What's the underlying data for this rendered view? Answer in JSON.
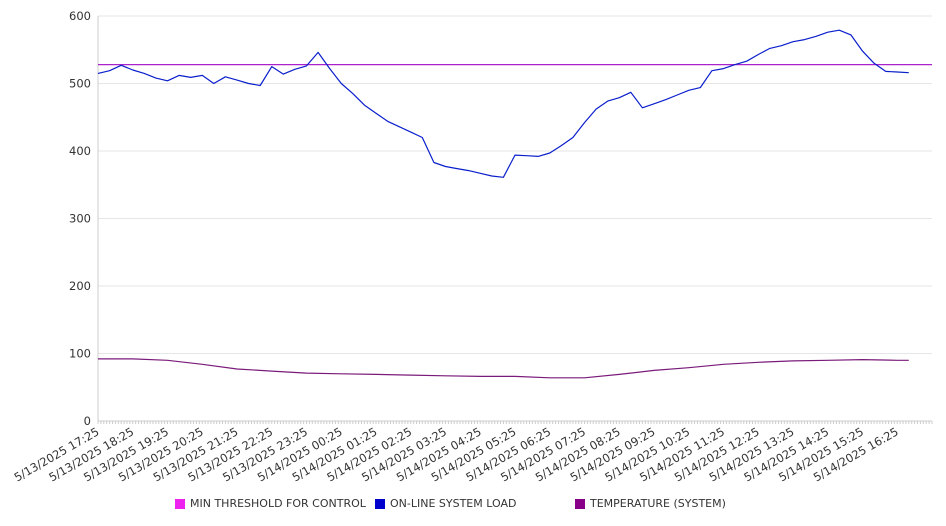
{
  "chart_data": {
    "type": "line",
    "title": "",
    "xlabel": "",
    "ylabel": "",
    "ylim": [
      0,
      600
    ],
    "y_ticks": [
      "0",
      "100",
      "200",
      "300",
      "400",
      "500",
      "600"
    ],
    "x_tick_labels": [
      "5/13/2025 17:25",
      "5/13/2025 18:25",
      "5/13/2025 19:25",
      "5/13/2025 20:25",
      "5/13/2025 21:25",
      "5/13/2025 22:25",
      "5/13/2025 23:25",
      "5/14/2025 00:25",
      "5/14/2025 01:25",
      "5/14/2025 02:25",
      "5/14/2025 03:25",
      "5/14/2025 04:25",
      "5/14/2025 05:25",
      "5/14/2025 06:25",
      "5/14/2025 07:25",
      "5/14/2025 08:25",
      "5/14/2025 09:25",
      "5/14/2025 10:25",
      "5/14/2025 11:25",
      "5/14/2025 12:25",
      "5/14/2025 13:25",
      "5/14/2025 14:25",
      "5/14/2025 15:25",
      "5/14/2025 16:25"
    ],
    "grid": true,
    "legend_position": "bottom",
    "series": [
      {
        "name": "MIN THRESHOLD FOR CONTROL",
        "color": "#ee22ee",
        "line_color": "#aa22cc",
        "constant": 528
      },
      {
        "name": "ON-LINE SYSTEM LOAD",
        "color": "#0000cc",
        "line_color": "#0a1fcc",
        "x": [
          "5/13/2025 17:25",
          "5/13/2025 17:45",
          "5/13/2025 18:05",
          "5/13/2025 18:25",
          "5/13/2025 18:45",
          "5/13/2025 19:05",
          "5/13/2025 19:25",
          "5/13/2025 19:45",
          "5/13/2025 20:05",
          "5/13/2025 20:25",
          "5/13/2025 20:45",
          "5/13/2025 21:05",
          "5/13/2025 21:25",
          "5/13/2025 21:45",
          "5/13/2025 22:05",
          "5/13/2025 22:25",
          "5/13/2025 22:45",
          "5/13/2025 23:05",
          "5/13/2025 23:25",
          "5/13/2025 23:45",
          "5/14/2025 00:05",
          "5/14/2025 00:25",
          "5/14/2025 00:45",
          "5/14/2025 01:05",
          "5/14/2025 01:25",
          "5/14/2025 01:45",
          "5/14/2025 02:05",
          "5/14/2025 02:25",
          "5/14/2025 02:45",
          "5/14/2025 03:05",
          "5/14/2025 03:25",
          "5/14/2025 03:45",
          "5/14/2025 04:05",
          "5/14/2025 04:25",
          "5/14/2025 04:45",
          "5/14/2025 05:05",
          "5/14/2025 05:25",
          "5/14/2025 05:45",
          "5/14/2025 06:05",
          "5/14/2025 06:25",
          "5/14/2025 06:45",
          "5/14/2025 07:05",
          "5/14/2025 07:25",
          "5/14/2025 07:45",
          "5/14/2025 08:05",
          "5/14/2025 08:25",
          "5/14/2025 08:45",
          "5/14/2025 09:05",
          "5/14/2025 09:25",
          "5/14/2025 09:45",
          "5/14/2025 10:05",
          "5/14/2025 10:25",
          "5/14/2025 10:45",
          "5/14/2025 11:05",
          "5/14/2025 11:25",
          "5/14/2025 11:45",
          "5/14/2025 12:05",
          "5/14/2025 12:25",
          "5/14/2025 12:45",
          "5/14/2025 13:05",
          "5/14/2025 13:25",
          "5/14/2025 13:45",
          "5/14/2025 14:05",
          "5/14/2025 14:25",
          "5/14/2025 14:45",
          "5/14/2025 15:05",
          "5/14/2025 15:25",
          "5/14/2025 15:45",
          "5/14/2025 16:05",
          "5/14/2025 16:25",
          "5/14/2025 16:45"
        ],
        "values": [
          515,
          519,
          527,
          520,
          515,
          508,
          504,
          512,
          509,
          512,
          500,
          510,
          505,
          500,
          497,
          525,
          514,
          521,
          526,
          546,
          522,
          500,
          485,
          468,
          456,
          444,
          436,
          428,
          420,
          383,
          377,
          374,
          371,
          367,
          363,
          361,
          394,
          393,
          392,
          397,
          408,
          420,
          442,
          462,
          474,
          479,
          487,
          464,
          470,
          476,
          483,
          490,
          494,
          519,
          522,
          528,
          533,
          543,
          552,
          556,
          562,
          565,
          570,
          576,
          579,
          572,
          548,
          530,
          518,
          517,
          516
        ]
      },
      {
        "name": "TEMPERATURE (SYSTEM)",
        "color": "#880088",
        "line_color": "#7a1a7a",
        "x": [
          "5/13/2025 17:25",
          "5/13/2025 18:25",
          "5/13/2025 19:25",
          "5/13/2025 20:25",
          "5/13/2025 21:25",
          "5/13/2025 22:25",
          "5/13/2025 23:25",
          "5/14/2025 00:25",
          "5/14/2025 01:25",
          "5/14/2025 02:25",
          "5/14/2025 03:25",
          "5/14/2025 04:25",
          "5/14/2025 05:25",
          "5/14/2025 06:25",
          "5/14/2025 07:25",
          "5/14/2025 08:25",
          "5/14/2025 09:25",
          "5/14/2025 10:25",
          "5/14/2025 11:25",
          "5/14/2025 12:25",
          "5/14/2025 13:25",
          "5/14/2025 14:25",
          "5/14/2025 15:25",
          "5/14/2025 16:25",
          "5/14/2025 16:45"
        ],
        "values": [
          92,
          92,
          90,
          84,
          77,
          74,
          71,
          70,
          69,
          68,
          67,
          66,
          66,
          64,
          64,
          69,
          75,
          79,
          84,
          87,
          89,
          90,
          91,
          90,
          90
        ]
      }
    ]
  }
}
